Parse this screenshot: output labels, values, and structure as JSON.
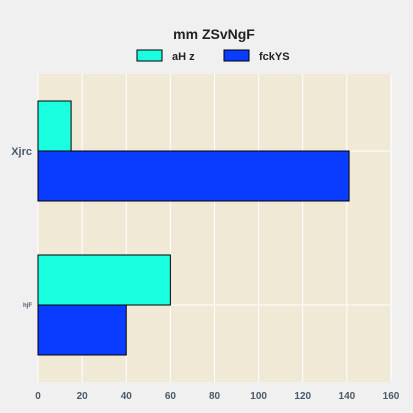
{
  "chart_data": {
    "type": "bar",
    "orientation": "horizontal",
    "title": "mm ZSvNgF",
    "categories": [
      "Xjrc",
      "hjF"
    ],
    "series": [
      {
        "name": "aH z",
        "values": [
          15,
          60
        ],
        "color": "#1affe0"
      },
      {
        "name": "fckYS",
        "values": [
          141,
          40
        ],
        "color": "#0a3cff"
      }
    ],
    "xlim": [
      0,
      160
    ],
    "xticks": [
      0,
      20,
      40,
      60,
      80,
      100,
      120,
      140,
      160
    ],
    "grid": true,
    "legend_position": "top-center",
    "plot_background": "#f0e9d6",
    "page_background": "#f0f0f0"
  }
}
